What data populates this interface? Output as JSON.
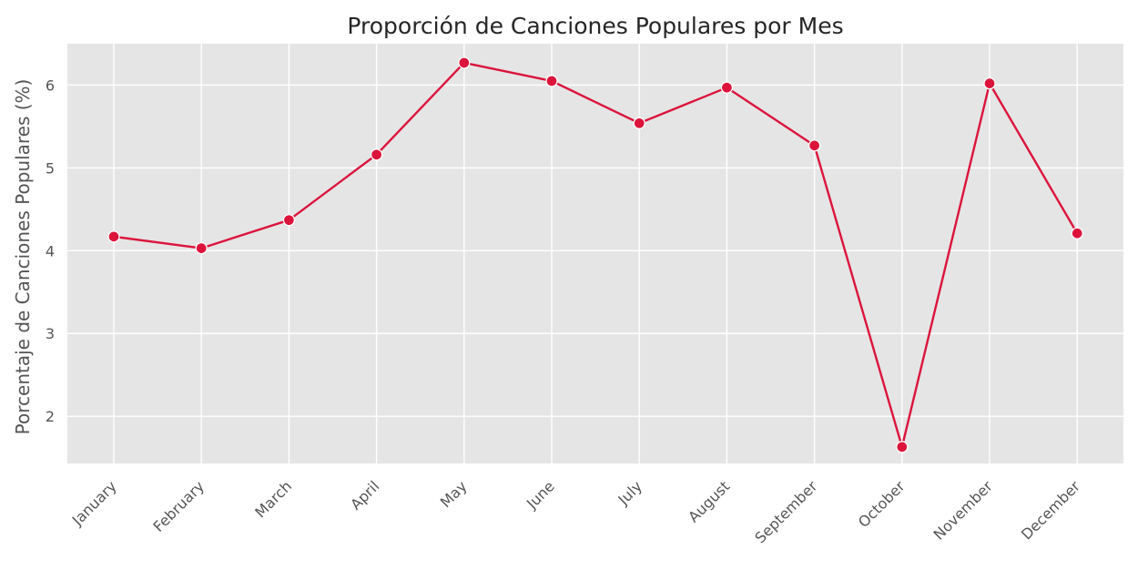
{
  "chart_data": {
    "type": "line",
    "title": "Proporción de Canciones Populares por Mes",
    "xlabel": "",
    "ylabel": "Porcentaje de Canciones Populares (%)",
    "categories": [
      "January",
      "February",
      "March",
      "April",
      "May",
      "June",
      "July",
      "August",
      "September",
      "October",
      "November",
      "December"
    ],
    "series": [
      {
        "values": [
          4.17,
          4.03,
          4.37,
          5.16,
          6.27,
          6.05,
          5.54,
          5.97,
          5.27,
          1.63,
          6.02,
          4.21
        ]
      }
    ],
    "yticks": [
      "2",
      "3",
      "4",
      "5",
      "6"
    ],
    "ylim": [
      1.43,
      6.5
    ],
    "grid": true,
    "colors": {
      "line": "#dc143c",
      "plot_background": "#e5e5e5",
      "grid": "#ffffff"
    }
  }
}
